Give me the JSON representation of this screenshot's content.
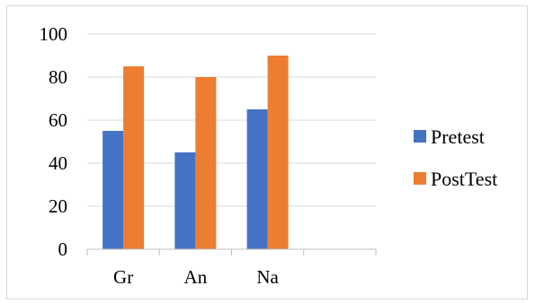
{
  "chart_data": {
    "type": "bar",
    "categories": [
      "Gr",
      "An",
      "Na",
      ""
    ],
    "series": [
      {
        "name": "Pretest",
        "values": [
          55,
          45,
          65,
          null
        ],
        "color": "#4472c4"
      },
      {
        "name": "PostTest",
        "values": [
          85,
          80,
          90,
          null
        ],
        "color": "#ed7d31"
      }
    ],
    "ylim": [
      0,
      100
    ],
    "yticks": [
      0,
      20,
      40,
      60,
      80,
      100
    ],
    "grid": true,
    "legend_position": "right"
  }
}
